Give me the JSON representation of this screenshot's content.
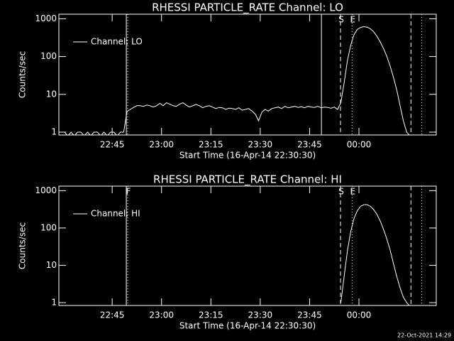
{
  "chart_data": [
    {
      "type": "line",
      "title": "RHESSI PARTICLE_RATE Channel: LO",
      "xlabel": "Start Time (16-Apr-14 22:30:30)",
      "ylabel": "Counts/sec",
      "log_y": true,
      "ylim": [
        0.84,
        1320
      ],
      "yticks": [
        1,
        10,
        100,
        1000
      ],
      "xlim": [
        -1.7,
        113
      ],
      "xticks": [
        {
          "value": 14.5,
          "label": "22:45"
        },
        {
          "value": 29.5,
          "label": "23:00"
        },
        {
          "value": 44.5,
          "label": "23:15"
        },
        {
          "value": 59.5,
          "label": "23:30"
        },
        {
          "value": 74.5,
          "label": "23:45"
        },
        {
          "value": 89.5,
          "label": "00:00"
        }
      ],
      "legend": "upper left",
      "series": [
        {
          "name": "Channel: LO",
          "color": "#ffffff",
          "x": [
            0,
            1,
            2,
            3,
            4,
            5,
            6,
            7,
            8,
            9,
            10,
            11,
            12,
            13,
            14,
            15,
            16,
            17,
            18,
            19,
            20,
            21,
            22,
            23,
            24,
            25,
            26,
            27,
            28,
            29,
            30,
            31,
            32,
            33,
            34,
            35,
            36,
            37,
            38,
            39,
            40,
            41,
            42,
            43,
            44,
            45,
            46,
            47,
            48,
            49,
            50,
            51,
            52,
            53,
            54,
            55,
            56,
            57,
            58,
            59,
            60,
            61,
            62,
            63,
            64,
            65,
            66,
            67,
            68,
            69,
            70,
            71,
            72,
            73,
            74,
            75,
            76,
            77,
            78,
            79,
            80,
            81,
            82,
            83,
            84,
            85,
            86,
            87,
            88,
            89,
            90,
            91,
            92,
            93,
            94,
            95,
            96,
            97,
            98,
            99,
            100,
            101,
            102,
            103,
            104,
            105
          ],
          "values": [
            1,
            0.8,
            1,
            0.8,
            1,
            1,
            0.8,
            1,
            0.8,
            1,
            1,
            0.8,
            1,
            0.8,
            1,
            1,
            0.8,
            1,
            1,
            3.5,
            4,
            4.5,
            5,
            5,
            4.8,
            5.2,
            5,
            4.6,
            5,
            5.8,
            5,
            6,
            5.5,
            5,
            4.8,
            5.5,
            6,
            5.2,
            4.6,
            5,
            5.4,
            5,
            4.4,
            4.8,
            5,
            4.6,
            4.2,
            4.5,
            4.4,
            4,
            4.3,
            4.2,
            4,
            4.4,
            3.8,
            4,
            4.2,
            3.6,
            3,
            2,
            3.4,
            4,
            3.6,
            4.2,
            4.4,
            4.6,
            4.2,
            4.8,
            4.4,
            4.6,
            4.8,
            4.5,
            4.7,
            4.4,
            4.8,
            4.6,
            4.5,
            4.8,
            4.4,
            4.6,
            4.5,
            4.3,
            4.6,
            4,
            6,
            20,
            80,
            200,
            380,
            520,
            590,
            620,
            600,
            540,
            450,
            340,
            240,
            160,
            100,
            55,
            28,
            13,
            5,
            2,
            1,
            0.8
          ]
        }
      ],
      "markers": [
        {
          "x": 18.8,
          "style": "solid"
        },
        {
          "x": 19.2,
          "style": "dotted"
        },
        {
          "x": 78.1,
          "style": "solid"
        },
        {
          "x": 83.9,
          "style": "dashed",
          "label": "S"
        },
        {
          "x": 87.4,
          "style": "dotted",
          "label": "E"
        },
        {
          "x": 105.3,
          "style": "dashed"
        },
        {
          "x": 108.6,
          "style": "dotted"
        }
      ]
    },
    {
      "type": "line",
      "title": "RHESSI PARTICLE_RATE Channel: HI",
      "xlabel": "Start Time (16-Apr-14 22:30:30)",
      "ylabel": "Counts/sec",
      "log_y": true,
      "ylim": [
        0.84,
        1320
      ],
      "yticks": [
        1,
        10,
        100,
        1000
      ],
      "xlim": [
        -1.7,
        113
      ],
      "xticks": [
        {
          "value": 14.5,
          "label": "22:45"
        },
        {
          "value": 29.5,
          "label": "23:00"
        },
        {
          "value": 44.5,
          "label": "23:15"
        },
        {
          "value": 59.5,
          "label": "23:30"
        },
        {
          "value": 74.5,
          "label": "23:45"
        },
        {
          "value": 89.5,
          "label": "00:00"
        }
      ],
      "legend": "upper left",
      "series": [
        {
          "name": "Channel: HI",
          "color": "#ffffff",
          "x": [
            84,
            85,
            86,
            87,
            88,
            89,
            90,
            91,
            92,
            93,
            94,
            95,
            96,
            97,
            98,
            99,
            100,
            101,
            102,
            103,
            104,
            105
          ],
          "values": [
            1,
            5,
            25,
            80,
            180,
            290,
            380,
            420,
            420,
            380,
            310,
            230,
            150,
            90,
            50,
            25,
            11,
            5,
            2.5,
            1.4,
            1,
            0.8
          ]
        }
      ],
      "markers": [
        {
          "x": 18.8,
          "style": "solid"
        },
        {
          "x": 19.2,
          "style": "dotted",
          "label": "F"
        },
        {
          "x": 83.9,
          "style": "dashed",
          "label": "S"
        },
        {
          "x": 87.4,
          "style": "dotted",
          "label": "E"
        },
        {
          "x": 105.3,
          "style": "dashed"
        },
        {
          "x": 108.6,
          "style": "dotted"
        }
      ]
    }
  ],
  "footer": "22-Oct-2021 14:29"
}
